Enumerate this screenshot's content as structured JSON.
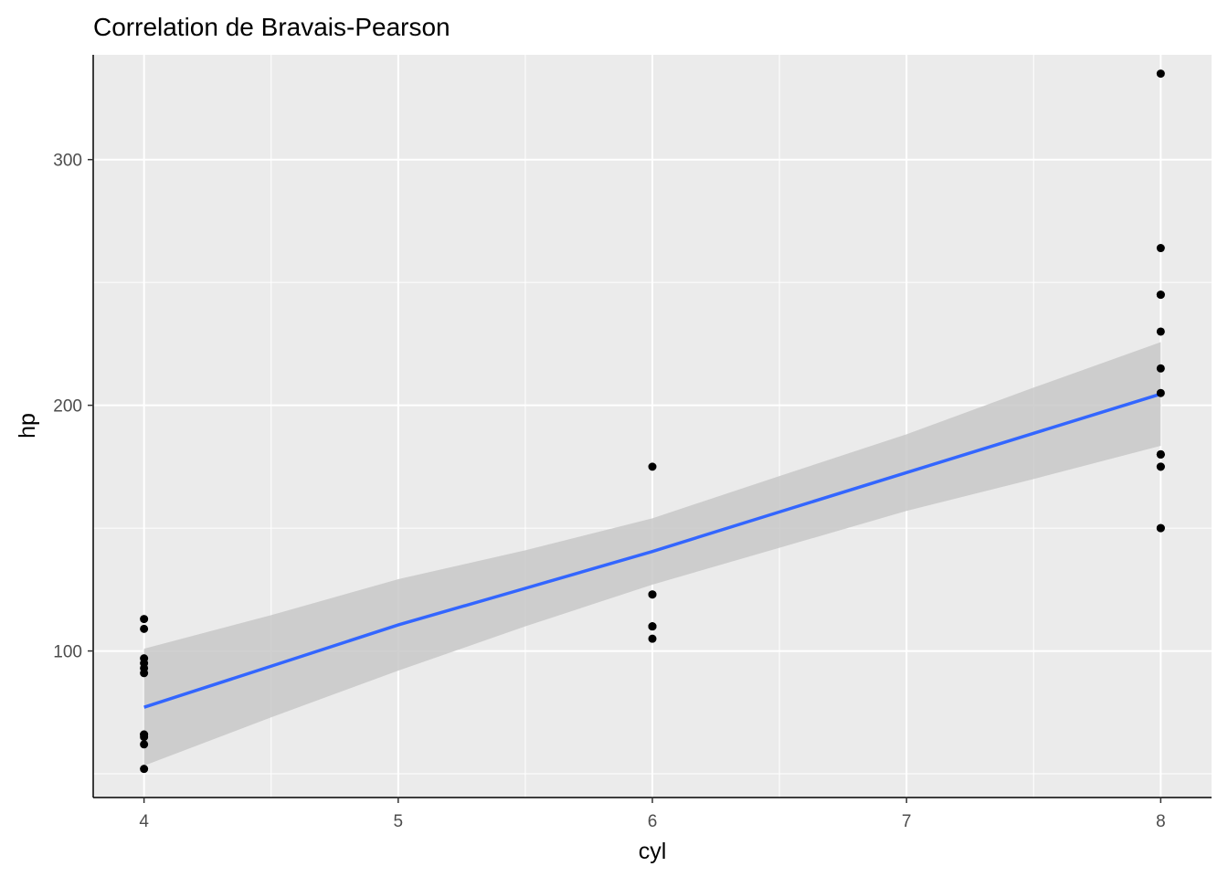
{
  "chart_data": {
    "type": "scatter",
    "title": "Correlation de Bravais-Pearson",
    "xlabel": "cyl",
    "ylabel": "hp",
    "xlim": [
      3.8,
      8.2
    ],
    "ylim": [
      40.35,
      342.65
    ],
    "x_ticks": [
      4,
      5,
      6,
      7,
      8
    ],
    "y_ticks": [
      100,
      200,
      300
    ],
    "grid": true,
    "legend": "none",
    "points": [
      {
        "x": 4,
        "y": 93
      },
      {
        "x": 4,
        "y": 62
      },
      {
        "x": 4,
        "y": 95
      },
      {
        "x": 4,
        "y": 66
      },
      {
        "x": 4,
        "y": 52
      },
      {
        "x": 4,
        "y": 65
      },
      {
        "x": 4,
        "y": 97
      },
      {
        "x": 4,
        "y": 66
      },
      {
        "x": 4,
        "y": 91
      },
      {
        "x": 4,
        "y": 113
      },
      {
        "x": 4,
        "y": 109
      },
      {
        "x": 6,
        "y": 110
      },
      {
        "x": 6,
        "y": 110
      },
      {
        "x": 6,
        "y": 110
      },
      {
        "x": 6,
        "y": 105
      },
      {
        "x": 6,
        "y": 123
      },
      {
        "x": 6,
        "y": 123
      },
      {
        "x": 6,
        "y": 175
      },
      {
        "x": 8,
        "y": 175
      },
      {
        "x": 8,
        "y": 245
      },
      {
        "x": 8,
        "y": 180
      },
      {
        "x": 8,
        "y": 180
      },
      {
        "x": 8,
        "y": 180
      },
      {
        "x": 8,
        "y": 205
      },
      {
        "x": 8,
        "y": 215
      },
      {
        "x": 8,
        "y": 230
      },
      {
        "x": 8,
        "y": 150
      },
      {
        "x": 8,
        "y": 150
      },
      {
        "x": 8,
        "y": 245
      },
      {
        "x": 8,
        "y": 175
      },
      {
        "x": 8,
        "y": 264
      },
      {
        "x": 8,
        "y": 335
      }
    ],
    "fit_line": {
      "method": "lm",
      "x": [
        4,
        4.5,
        5,
        5.5,
        6,
        6.5,
        7,
        7.5,
        8
      ],
      "y": [
        77.1,
        93.8,
        110.6,
        125.5,
        140.5,
        156.6,
        172.6,
        188.6,
        204.6
      ],
      "ci_lower": [
        53.3,
        73.0,
        92.0,
        110.0,
        127.0,
        142.0,
        157.0,
        170.0,
        183.5
      ],
      "ci_upper": [
        100.9,
        114.6,
        129.2,
        141.0,
        154.0,
        171.2,
        188.2,
        207.2,
        225.7
      ]
    },
    "colors": {
      "panel": "#ebebeb",
      "grid": "#ffffff",
      "points": "#000000",
      "line": "#3366ff",
      "ribbon": "#c8c8c8",
      "axis": "#000000",
      "tick_text": "#4d4d4d"
    }
  }
}
